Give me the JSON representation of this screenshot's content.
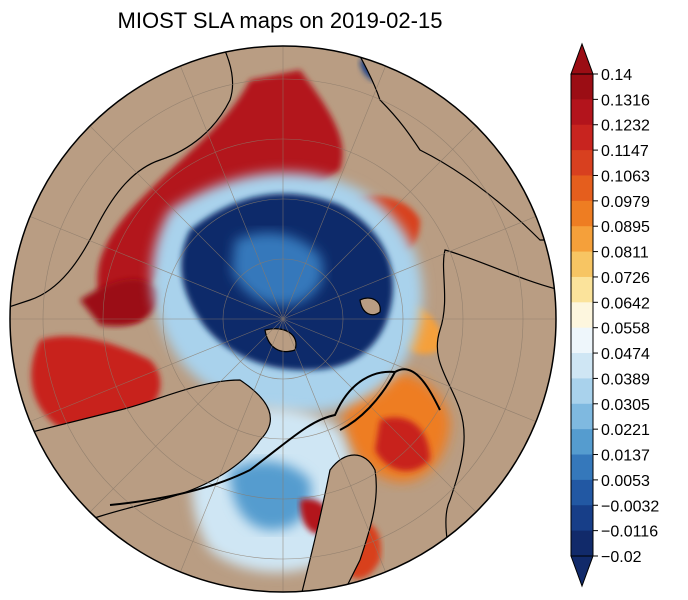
{
  "title": "MIOST SLA maps on 2019-02-15",
  "colorbar": {
    "tick_labels": [
      "0.14",
      "0.1316",
      "0.1232",
      "0.1147",
      "0.1063",
      "0.0979",
      "0.0895",
      "0.0811",
      "0.0726",
      "0.0642",
      "0.0558",
      "0.0474",
      "0.0389",
      "0.0305",
      "0.0221",
      "0.0137",
      "0.0053",
      "-0.0032",
      "-0.0116",
      "-0.02"
    ],
    "colors_top_to_bottom": [
      "#9b0d14",
      "#b3141c",
      "#c8241f",
      "#d8401f",
      "#e55e1d",
      "#ee7d22",
      "#f5a03a",
      "#f7c563",
      "#fbe39b",
      "#fdf6de",
      "#eef6fb",
      "#cfe6f4",
      "#a9d2ec",
      "#7fb9e0",
      "#559ccf",
      "#3578bb",
      "#2258a3",
      "#173e88",
      "#112a6a"
    ],
    "extend": "both"
  },
  "map": {
    "projection": "north-polar-stereographic",
    "land_color": "#b99d83",
    "graticule": true
  }
}
